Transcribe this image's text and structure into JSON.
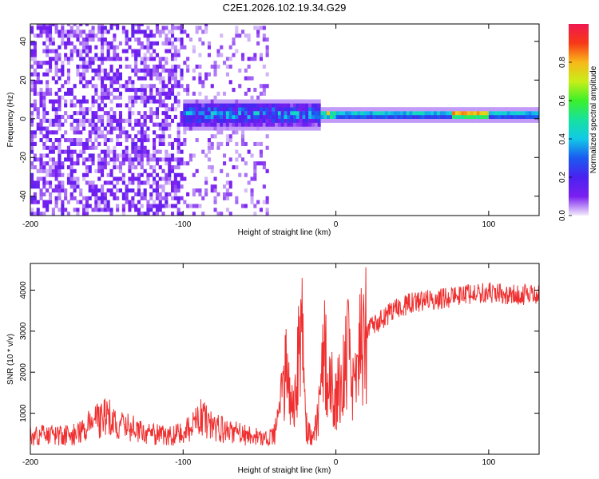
{
  "chart_data": [
    {
      "type": "heatmap",
      "title": "C2E1.2026.102.19.34.G29",
      "xlabel": "Height of straight line (km)",
      "ylabel": "Frequency (Hz)",
      "xlim": [
        -200,
        133
      ],
      "ylim": [
        -50,
        49
      ],
      "xticks": [
        "-200",
        "-100",
        "0",
        "100"
      ],
      "yticks": [
        "-40",
        "-20",
        "0",
        "20",
        "40"
      ],
      "colorbar": {
        "label": "Normalized spectral amplitude",
        "range": [
          0,
          1
        ],
        "ticks": [
          "0.0",
          "0.2",
          "0.4",
          "0.6",
          "0.8"
        ],
        "colors": [
          "#f2ecfb",
          "#7a1ff0",
          "#4a22f0",
          "#1a5af0",
          "#11c9e8",
          "#16e29e",
          "#3cf02a",
          "#c8ee18",
          "#f8b81a",
          "#f73817",
          "#ef1850"
        ]
      },
      "signal": {
        "noise_band_x": [
          -200,
          -45
        ],
        "band_x": [
          -100,
          133
        ],
        "band_center_hz": 1.5,
        "peak_amplitude": 1.0
      }
    },
    {
      "type": "line",
      "xlabel": "Height of straight line (km)",
      "ylabel": "SNR (10 * v/v)",
      "xlim": [
        -200,
        133
      ],
      "ylim": [
        0,
        4650
      ],
      "xticks": [
        "-200",
        "-100",
        "0",
        "100"
      ],
      "yticks": [
        "1000",
        "2000",
        "3000",
        "4000"
      ],
      "line_color": "#f03030",
      "series": [
        {
          "x": [
            -200,
            -170,
            -158,
            -150,
            -140,
            -125,
            -110,
            -100,
            -92,
            -88,
            -80,
            -60,
            -45,
            -40,
            -35,
            -32,
            -30,
            -28,
            -25,
            -22,
            -20,
            -15,
            -10,
            -8,
            -5,
            0,
            5,
            8,
            10,
            15,
            20,
            30,
            40,
            50,
            60,
            70,
            80,
            90,
            100,
            110,
            120,
            133
          ],
          "y": [
            450,
            480,
            800,
            900,
            750,
            500,
            450,
            500,
            750,
            900,
            650,
            480,
            400,
            500,
            1500,
            2700,
            1800,
            900,
            2200,
            2800,
            700,
            400,
            1200,
            2600,
            1800,
            1400,
            2000,
            2500,
            1800,
            2500,
            3000,
            3300,
            3550,
            3700,
            3750,
            3800,
            3850,
            3900,
            3950,
            3900,
            3900,
            3900
          ]
        }
      ]
    }
  ]
}
